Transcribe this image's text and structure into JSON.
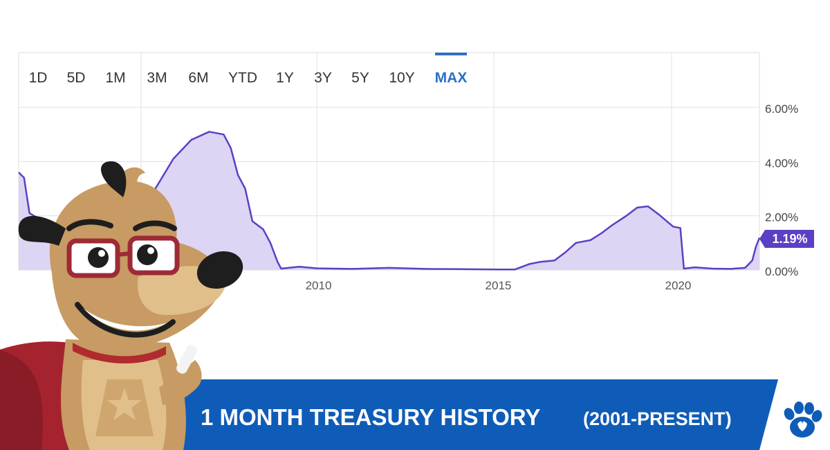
{
  "range_selector": {
    "tabs": [
      "1D",
      "5D",
      "1M",
      "3M",
      "6M",
      "YTD",
      "1Y",
      "3Y",
      "5Y",
      "10Y",
      "MAX"
    ],
    "active": "MAX"
  },
  "current_value_label": "1.19%",
  "banner": {
    "title": "1 MONTH TREASURY HISTORY",
    "subtitle": "(2001-PRESENT)"
  },
  "colors": {
    "line": "#5b3fc4",
    "area": "#d9d0f2",
    "accent": "#2d6fc4",
    "banner": "#0f5cb8",
    "grid": "#e0e0e0"
  },
  "icons": [
    "paw-icon",
    "mascot-dog"
  ],
  "chart_data": {
    "type": "area",
    "title": "",
    "xlabel": "",
    "ylabel": "",
    "x_ticks": [
      2010,
      2015,
      2020
    ],
    "y_ticks": [
      "0.00%",
      "2.00%",
      "4.00%",
      "6.00%"
    ],
    "xlim": [
      2001.7,
      2022.3
    ],
    "ylim": [
      0,
      6
    ],
    "grid": true,
    "legend": "none",
    "series": [
      {
        "x": [
          2001.7,
          2001.85,
          2002.0,
          2002.5,
          2003.0,
          2003.5,
          2004.0,
          2004.5,
          2005.0,
          2005.5,
          2006.0,
          2006.5,
          2007.0,
          2007.4,
          2007.6,
          2007.8,
          2008.0,
          2008.2,
          2008.5,
          2008.7,
          2008.9,
          2009.0,
          2009.5,
          2010.0,
          2011.0,
          2012.0,
          2013.0,
          2014.0,
          2015.0,
          2015.5,
          2015.9,
          2016.2,
          2016.6,
          2016.9,
          2017.2,
          2017.6,
          2017.9,
          2018.2,
          2018.6,
          2018.9,
          2019.2,
          2019.5,
          2019.9,
          2020.1,
          2020.2,
          2020.5,
          2021.0,
          2021.5,
          2021.9,
          2022.1,
          2022.2,
          2022.3
        ],
        "y": [
          3.6,
          3.4,
          2.1,
          1.7,
          1.15,
          0.95,
          0.92,
          1.3,
          2.3,
          3.0,
          4.1,
          4.8,
          5.1,
          5.0,
          4.5,
          3.5,
          3.0,
          1.8,
          1.5,
          1.0,
          0.3,
          0.05,
          0.12,
          0.06,
          0.04,
          0.08,
          0.04,
          0.03,
          0.02,
          0.02,
          0.22,
          0.3,
          0.35,
          0.65,
          1.0,
          1.1,
          1.35,
          1.65,
          2.0,
          2.3,
          2.35,
          2.05,
          1.6,
          1.55,
          0.05,
          0.1,
          0.05,
          0.04,
          0.08,
          0.35,
          0.85,
          1.19
        ]
      }
    ]
  }
}
